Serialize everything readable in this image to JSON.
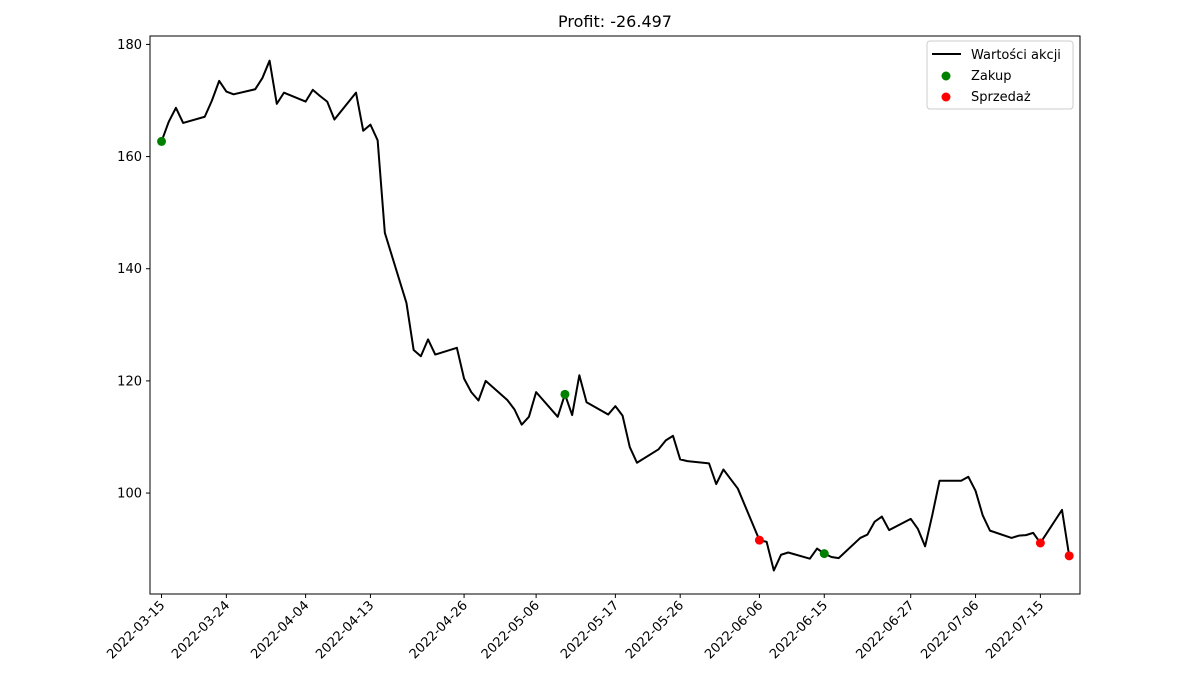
{
  "chart_data": {
    "type": "line",
    "title": "Profit: -26.497",
    "xlabel": "",
    "ylabel": "",
    "ylim": [
      82,
      181.5
    ],
    "yticks": [
      100,
      120,
      140,
      160,
      180
    ],
    "xticks": [
      "2022-03-15",
      "2022-03-24",
      "2022-04-04",
      "2022-04-13",
      "2022-04-26",
      "2022-05-06",
      "2022-05-17",
      "2022-05-26",
      "2022-06-06",
      "2022-06-15",
      "2022-06-27",
      "2022-07-06",
      "2022-07-15"
    ],
    "legend_position": "top-right",
    "grid": false,
    "colors": {
      "line": "#000000",
      "buy": "#008000",
      "sell": "#ff0000",
      "legend_border": "#cccccc"
    },
    "series": [
      {
        "name": "Wartości akcji",
        "kind": "line",
        "values": [
          162.7,
          166.2,
          168.7,
          166.0,
          167.1,
          170.0,
          173.5,
          171.6,
          171.1,
          172.0,
          174.0,
          177.1,
          169.4,
          171.4,
          169.8,
          171.9,
          170.8,
          169.8,
          166.6,
          171.4,
          164.6,
          165.7,
          162.9,
          146.4,
          133.9,
          125.5,
          124.4,
          127.4,
          124.7,
          125.9,
          120.4,
          118.0,
          116.5,
          120.0,
          116.6,
          114.9,
          112.2,
          113.6,
          118.0,
          113.6,
          117.6,
          113.9,
          121.0,
          116.2,
          114.0,
          115.5,
          113.8,
          108.2,
          105.4,
          107.8,
          109.4,
          110.2,
          106.0,
          105.7,
          105.3,
          101.6,
          104.2,
          102.5,
          100.8,
          91.6,
          91.3,
          86.2,
          89.0,
          89.4,
          88.3,
          90.1,
          89.2,
          88.6,
          88.4,
          92.0,
          92.6,
          94.9,
          95.8,
          93.4,
          95.4,
          93.6,
          90.5,
          96.1,
          102.2,
          102.2,
          102.9,
          100.4,
          96.0,
          93.3,
          92.0,
          92.4,
          92.5,
          92.9,
          91.1,
          97.0,
          88.8
        ]
      },
      {
        "name": "Zakup",
        "kind": "scatter",
        "points": [
          {
            "i": 0,
            "y": 162.7
          },
          {
            "i": 40,
            "y": 117.6
          },
          {
            "i": 66,
            "y": 89.2
          }
        ]
      },
      {
        "name": "Sprzedaż",
        "kind": "scatter",
        "points": [
          {
            "i": 59,
            "y": 91.6
          },
          {
            "i": 88,
            "y": 91.1
          },
          {
            "i": 90,
            "y": 88.8
          }
        ]
      }
    ]
  }
}
